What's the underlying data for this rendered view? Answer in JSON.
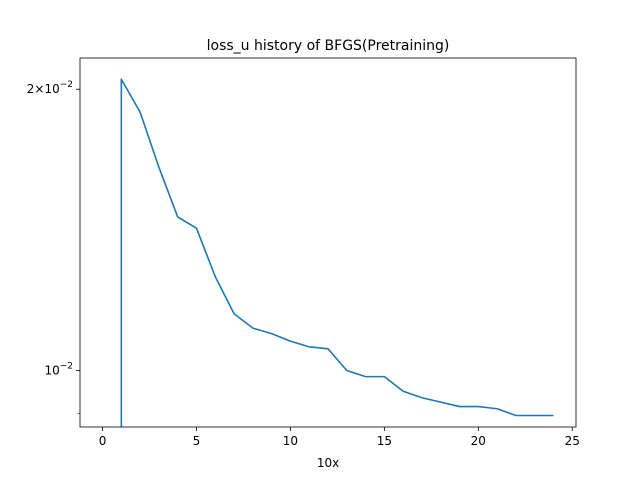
{
  "chart_data": {
    "type": "line",
    "title": "loss_u history of BFGS(Pretraining)",
    "xlabel": "10x",
    "ylabel": "",
    "yscale": "log",
    "xlim": [
      -1.2,
      25.2
    ],
    "ylim": [
      0.0087,
      0.0216
    ],
    "x_ticks": [
      0,
      5,
      10,
      15,
      20,
      25
    ],
    "x_tick_labels": [
      "0",
      "5",
      "10",
      "15",
      "20",
      "25"
    ],
    "y_major_ticks": [
      0.01,
      0.02
    ],
    "y_tick_labels": {
      "base": "2×10",
      "exp": "−2",
      "base2": "10",
      "exp2": "−2"
    },
    "y_minor_ticks": [
      0.009
    ],
    "grid": false,
    "series": [
      {
        "color": "#1f77b4",
        "x": [
          1,
          1,
          2,
          3,
          4,
          5,
          6,
          7,
          8,
          9,
          10,
          11,
          12,
          13,
          14,
          15,
          16,
          17,
          18,
          19,
          20,
          21,
          22,
          23,
          24
        ],
        "y": [
          0.0086,
          0.0205,
          0.0189,
          0.0165,
          0.0146,
          0.0142,
          0.0126,
          0.0115,
          0.0111,
          0.01095,
          0.01075,
          0.0106,
          0.01055,
          0.01,
          0.00985,
          0.00985,
          0.0095,
          0.00935,
          0.00925,
          0.00915,
          0.00915,
          0.0091,
          0.00895,
          0.00895,
          0.00895
        ]
      }
    ]
  }
}
